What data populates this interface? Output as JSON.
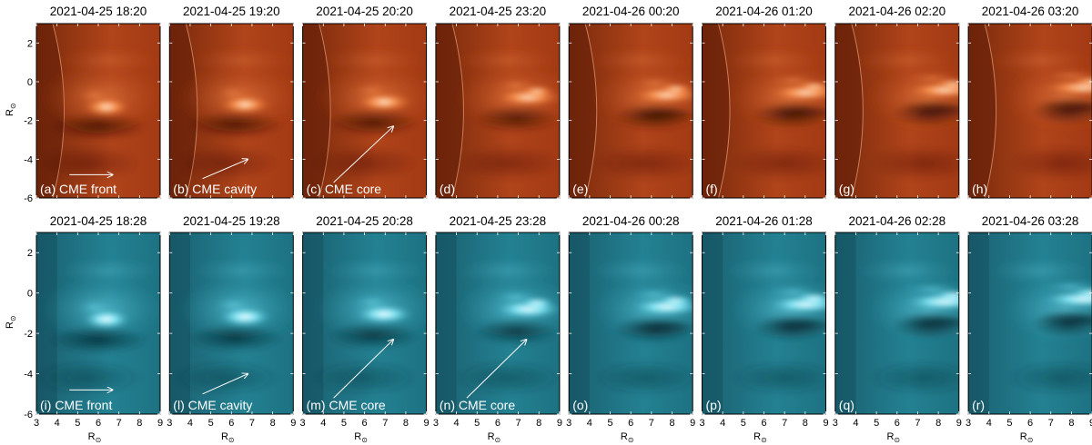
{
  "figure": {
    "y_axis_label": "R",
    "x_axis_label": "R",
    "unit_symbol": "⊙",
    "x_ticks": [
      "3",
      "4",
      "5",
      "6",
      "7",
      "8",
      "9"
    ],
    "y_ticks": [
      "2",
      "0",
      "-2",
      "-4",
      "-6"
    ],
    "top_row": {
      "instrument_color": "orange",
      "panels": [
        {
          "title": "2021-04-25 18:20",
          "label": "(a) CME front",
          "arrow": "short"
        },
        {
          "title": "2021-04-25 19:20",
          "label": "(b) CME cavity",
          "arrow": "mid"
        },
        {
          "title": "2021-04-25 20:20",
          "label": "(c) CME core",
          "arrow": "long"
        },
        {
          "title": "2021-04-25 23:20",
          "label": "(d)",
          "arrow": "none"
        },
        {
          "title": "2021-04-26 00:20",
          "label": "(e)",
          "arrow": "none"
        },
        {
          "title": "2021-04-26 01:20",
          "label": "(f)",
          "arrow": "none"
        },
        {
          "title": "2021-04-26 02:20",
          "label": "(g)",
          "arrow": "none"
        },
        {
          "title": "2021-04-26 03:20",
          "label": "(h)",
          "arrow": "none"
        }
      ]
    },
    "bottom_row": {
      "instrument_color": "cyan",
      "panels": [
        {
          "title": "2021-04-25 18:28",
          "label": "(i) CME front",
          "arrow": "short"
        },
        {
          "title": "2021-04-25 19:28",
          "label": "(l) CME cavity",
          "arrow": "mid"
        },
        {
          "title": "2021-04-25 20:28",
          "label": "(m) CME core",
          "arrow": "long"
        },
        {
          "title": "2021-04-25 23:28",
          "label": "(n) CME core",
          "arrow": "long"
        },
        {
          "title": "2021-04-26 00:28",
          "label": "(o)",
          "arrow": "none"
        },
        {
          "title": "2021-04-26 01:28",
          "label": "(p)",
          "arrow": "none"
        },
        {
          "title": "2021-04-26 02:28",
          "label": "(q)",
          "arrow": "none"
        },
        {
          "title": "2021-04-26 03:28",
          "label": "(r)",
          "arrow": "none"
        }
      ]
    },
    "colors": {
      "orange_base": "#a83a10",
      "orange_dark": "#5a1a08",
      "orange_bright": "#ffd8a8",
      "cyan_base": "#1f6f7e",
      "cyan_dark": "#0e3c48",
      "cyan_bright": "#e8ffff"
    }
  }
}
